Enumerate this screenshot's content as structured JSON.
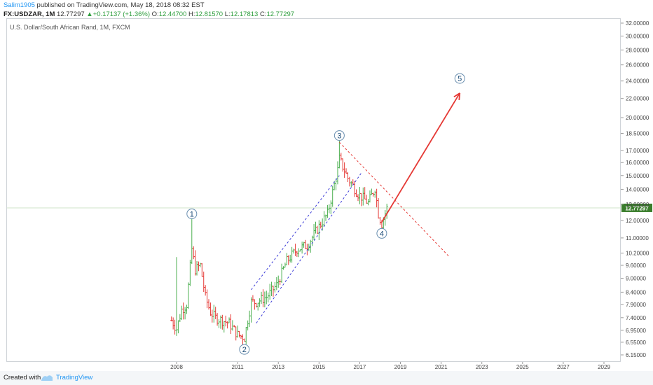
{
  "header": {
    "author": "Salim1905",
    "published_text": " published on TradingView.com, May 18, 2018 08:32 EST",
    "symbol": "FX:USDZAR, 1M",
    "last": "12.77297",
    "arrow": "▲",
    "change": "+0.17137 (+1.36%)",
    "o_label": "O:",
    "o": "12.44700",
    "h_label": "H:",
    "h": "12.81570",
    "l_label": "L:",
    "l": "12.17813",
    "c_label": "C:",
    "c": "12.77297"
  },
  "chart_data": {
    "type": "candlestick",
    "title": "U.S. Dollar/South African Rand, 1M, FXCM",
    "x_ticks": [
      "2008",
      "2011",
      "2013",
      "2015",
      "2017",
      "2019",
      "2021",
      "2023",
      "2025",
      "2027",
      "2029"
    ],
    "y_ticks": [
      "32.00000",
      "30.00000",
      "28.00000",
      "26.00000",
      "24.00000",
      "22.00000",
      "20.00000",
      "18.50000",
      "17.00000",
      "16.00000",
      "15.00000",
      "14.00000",
      "13.00000",
      "12.00000",
      "11.00000",
      "10.20000",
      "9.60000",
      "9.00000",
      "8.40000",
      "7.90000",
      "7.40000",
      "6.95000",
      "6.55000",
      "6.15000"
    ],
    "scale": "log",
    "current_price_label": "12.77297",
    "current_price": 12.77297,
    "colors": {
      "up": "#4caf50",
      "down": "#e53935",
      "channel": "#3f3fd8",
      "trendline": "#e53935",
      "arrow": "#e53935",
      "wave_label": "#1e4e79",
      "price_line": "#cfe3c9",
      "price_tag": "#3a7d2c"
    },
    "price_path": [
      [
        "2007-10",
        7.3
      ],
      [
        "2008-01",
        7.0
      ],
      [
        "2008-04",
        7.7
      ],
      [
        "2008-07",
        7.9
      ],
      [
        "2008-10",
        10.4
      ],
      [
        "2008-12",
        9.4
      ],
      [
        "2009-03",
        9.6
      ],
      [
        "2009-06",
        8.2
      ],
      [
        "2009-09",
        7.6
      ],
      [
        "2009-12",
        7.4
      ],
      [
        "2010-04",
        7.3
      ],
      [
        "2010-08",
        7.2
      ],
      [
        "2011-01",
        6.8
      ],
      [
        "2011-05",
        6.7
      ],
      [
        "2011-09",
        8.0
      ],
      [
        "2011-12",
        8.0
      ],
      [
        "2012-06",
        8.2
      ],
      [
        "2012-12",
        8.7
      ],
      [
        "2013-06",
        9.8
      ],
      [
        "2013-12",
        10.4
      ],
      [
        "2014-06",
        10.6
      ],
      [
        "2014-12",
        11.5
      ],
      [
        "2015-06",
        12.4
      ],
      [
        "2015-12",
        15.4
      ],
      [
        "2016-01",
        16.3
      ],
      [
        "2016-06",
        14.8
      ],
      [
        "2016-12",
        13.7
      ],
      [
        "2017-06",
        13.1
      ],
      [
        "2017-10",
        14.1
      ],
      [
        "2017-12",
        12.4
      ],
      [
        "2018-02",
        11.8
      ],
      [
        "2018-05",
        12.77
      ]
    ],
    "waves": [
      {
        "label": "1",
        "date": "2008-10",
        "value": 12.4
      },
      {
        "label": "2",
        "date": "2011-05",
        "value": 6.32
      },
      {
        "label": "3",
        "date": "2016-01",
        "value": 18.3
      },
      {
        "label": "4",
        "date": "2018-02",
        "value": 11.25
      },
      {
        "label": "5",
        "date": "2021-12",
        "value": 24.3
      }
    ],
    "channel_lines": [
      {
        "from": [
          "2011-09",
          8.5
        ],
        "to": [
          "2016-01",
          15.0
        ]
      },
      {
        "from": [
          "2011-12",
          7.2
        ],
        "to": [
          "2017-02",
          15.2
        ]
      }
    ],
    "trendline": {
      "from": [
        "2016-01",
        17.7
      ],
      "to": [
        "2021-06",
        10.0
      ]
    },
    "projection_arrow": {
      "from": [
        "2018-02",
        11.9
      ],
      "to": [
        "2021-12",
        22.6
      ]
    }
  },
  "footer": {
    "created": "Created with",
    "brand": "TradingView"
  }
}
